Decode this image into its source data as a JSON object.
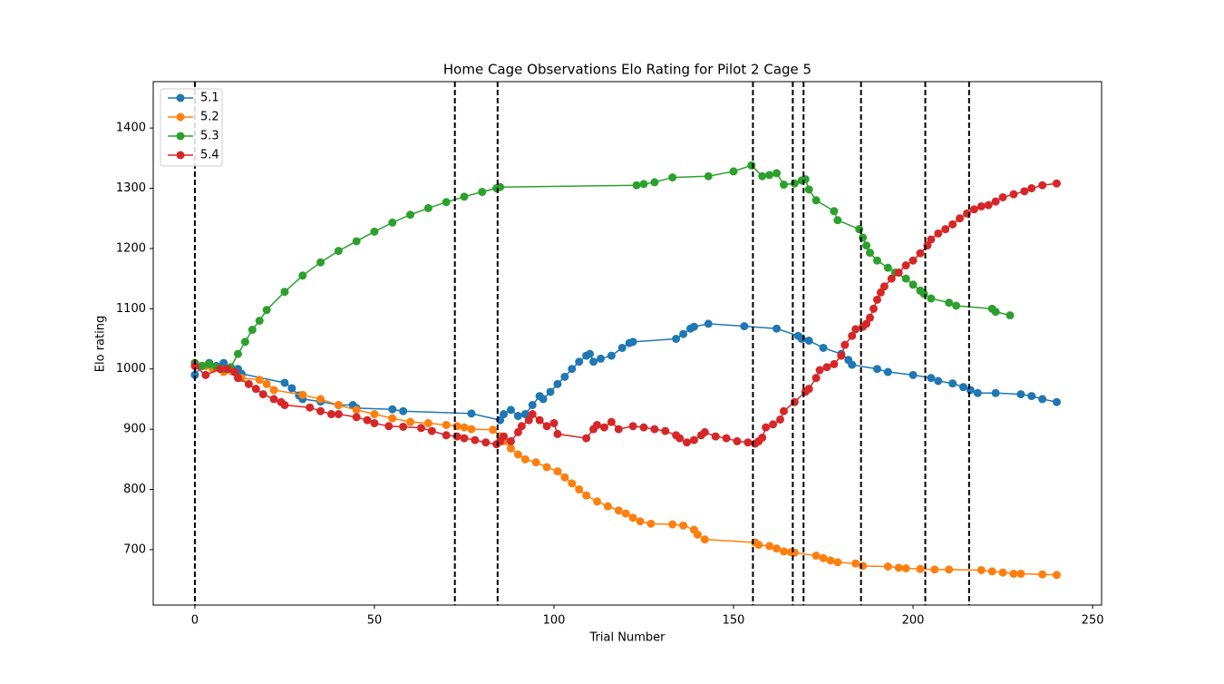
{
  "chart_data": {
    "type": "line",
    "title": "Home Cage Observations Elo Rating for Pilot 2 Cage 5",
    "xlabel": "Trial Number",
    "ylabel": "Elo rating",
    "xlim": [
      -11.6,
      252.5
    ],
    "ylim": [
      608,
      1477
    ],
    "xticks": [
      0,
      50,
      100,
      150,
      200,
      250
    ],
    "yticks": [
      700,
      800,
      900,
      1000,
      1100,
      1200,
      1300,
      1400
    ],
    "legend": "upper left",
    "vlines": [
      0,
      72.4,
      84.3,
      155.4,
      166.5,
      169.5,
      185.5,
      203.4,
      215.6
    ],
    "vline_color": "#000000",
    "series": [
      {
        "name": "5.1",
        "color": "#1f77b4",
        "x": [
          0,
          2,
          4,
          6,
          8,
          10,
          12,
          13,
          25,
          27,
          29,
          30,
          35,
          40,
          44,
          45,
          55,
          58,
          77,
          85,
          86,
          88,
          90,
          92,
          94,
          96,
          97,
          99,
          101,
          103,
          105,
          107,
          109,
          110,
          111,
          113,
          116,
          119,
          121,
          122,
          134,
          136,
          138,
          139,
          143,
          153,
          162,
          168,
          169,
          171,
          175,
          180,
          182,
          183,
          190,
          193,
          200,
          205,
          207,
          211,
          214,
          216,
          218,
          223,
          230,
          233,
          236,
          240
        ],
        "values": [
          990,
          1005,
          1010,
          1005,
          1010,
          1000,
          1000,
          992,
          977,
          968,
          956,
          950,
          946,
          940,
          940,
          935,
          933,
          930,
          926,
          915,
          925,
          932,
          922,
          925,
          940,
          955,
          950,
          962,
          975,
          987,
          1000,
          1012,
          1022,
          1025,
          1012,
          1017,
          1022,
          1035,
          1043,
          1045,
          1050,
          1058,
          1067,
          1070,
          1075,
          1071,
          1067,
          1055,
          1050,
          1047,
          1035,
          1025,
          1015,
          1007,
          1000,
          995,
          990,
          985,
          980,
          976,
          970,
          965,
          960,
          960,
          958,
          955,
          950,
          945
        ]
      },
      {
        "name": "5.2",
        "color": "#ff7f0e",
        "x": [
          0,
          3,
          5,
          8,
          13,
          18,
          20,
          22,
          30,
          35,
          40,
          45,
          50,
          55,
          60,
          65,
          70,
          73,
          75,
          77,
          83,
          85,
          86,
          88,
          90,
          92,
          95,
          98,
          101,
          103,
          105,
          107,
          109,
          112,
          115,
          118,
          120,
          122,
          124,
          127,
          133,
          136,
          139,
          140,
          142,
          156,
          157,
          160,
          162,
          164,
          166,
          167,
          173,
          175,
          177,
          179,
          184,
          186,
          193,
          196,
          198,
          202,
          206,
          210,
          219,
          222,
          225,
          228,
          230,
          236,
          240
        ],
        "values": [
          1010,
          1005,
          1000,
          995,
          985,
          982,
          975,
          965,
          957,
          950,
          940,
          932,
          925,
          918,
          912,
          910,
          907,
          905,
          903,
          900,
          899,
          888,
          880,
          868,
          858,
          850,
          845,
          837,
          830,
          820,
          810,
          800,
          790,
          780,
          772,
          765,
          760,
          753,
          747,
          743,
          742,
          740,
          733,
          725,
          717,
          712,
          708,
          706,
          702,
          697,
          696,
          695,
          690,
          686,
          682,
          679,
          677,
          673,
          672,
          670,
          669,
          668,
          667,
          667,
          666,
          664,
          662,
          660,
          660,
          659,
          658
        ]
      },
      {
        "name": "5.3",
        "color": "#2ca02c",
        "x": [
          0,
          2,
          4,
          6,
          8,
          10,
          12,
          14,
          16,
          18,
          20,
          25,
          30,
          35,
          40,
          45,
          50,
          55,
          60,
          65,
          70,
          75,
          80,
          84,
          85,
          123,
          125,
          128,
          133,
          143,
          150,
          155,
          158,
          160,
          162,
          164,
          167,
          169,
          170,
          171,
          173,
          178,
          179,
          185,
          186,
          187,
          188,
          190,
          193,
          195,
          198,
          200,
          202,
          203,
          205,
          210,
          212,
          222,
          223,
          227
        ],
        "values": [
          1010,
          1005,
          1008,
          1003,
          1000,
          1003,
          1025,
          1045,
          1065,
          1080,
          1098,
          1128,
          1155,
          1177,
          1196,
          1212,
          1228,
          1243,
          1256,
          1267,
          1277,
          1286,
          1294,
          1300,
          1302,
          1305,
          1307,
          1310,
          1318,
          1320,
          1328,
          1338,
          1320,
          1322,
          1325,
          1306,
          1308,
          1313,
          1315,
          1298,
          1280,
          1262,
          1247,
          1232,
          1218,
          1205,
          1193,
          1180,
          1168,
          1160,
          1150,
          1140,
          1130,
          1125,
          1117,
          1110,
          1105,
          1100,
          1095,
          1089
        ]
      },
      {
        "name": "5.4",
        "color": "#d62728",
        "x": [
          0,
          3,
          7,
          9,
          11,
          12,
          15,
          17,
          19,
          22,
          24,
          25,
          32,
          35,
          38,
          40,
          45,
          48,
          50,
          54,
          58,
          63,
          66,
          70,
          73,
          75,
          78,
          81,
          84,
          85,
          86,
          88,
          90,
          91,
          93,
          94,
          96,
          98,
          100,
          101,
          109,
          111,
          112,
          114,
          116,
          118,
          122,
          125,
          128,
          131,
          134,
          135,
          137,
          139,
          141,
          142,
          145,
          148,
          151,
          154,
          156,
          157,
          158,
          159,
          161,
          163,
          164,
          167,
          170,
          171,
          173,
          174,
          176,
          178,
          180,
          181,
          183,
          184,
          186,
          187,
          188,
          189,
          190,
          191,
          192,
          194,
          196,
          198,
          200,
          202,
          204,
          205,
          207,
          209,
          211,
          213,
          215,
          217,
          219,
          221,
          223,
          225,
          228,
          231,
          233,
          236,
          240
        ],
        "values": [
          1005,
          990,
          1000,
          1000,
          995,
          985,
          975,
          967,
          958,
          950,
          945,
          940,
          936,
          930,
          925,
          925,
          920,
          915,
          910,
          905,
          904,
          902,
          897,
          890,
          888,
          885,
          882,
          878,
          875,
          880,
          888,
          880,
          895,
          905,
          915,
          925,
          915,
          905,
          910,
          892,
          885,
          900,
          907,
          903,
          912,
          900,
          905,
          903,
          900,
          897,
          890,
          885,
          878,
          882,
          890,
          895,
          888,
          885,
          880,
          878,
          876,
          880,
          886,
          903,
          908,
          916,
          930,
          945,
          962,
          967,
          985,
          998,
          1003,
          1008,
          1022,
          1040,
          1055,
          1066,
          1070,
          1075,
          1085,
          1100,
          1115,
          1127,
          1137,
          1150,
          1160,
          1172,
          1180,
          1192,
          1205,
          1215,
          1225,
          1232,
          1240,
          1250,
          1258,
          1265,
          1270,
          1272,
          1278,
          1285,
          1290,
          1295,
          1300,
          1305,
          1308
        ]
      }
    ]
  }
}
